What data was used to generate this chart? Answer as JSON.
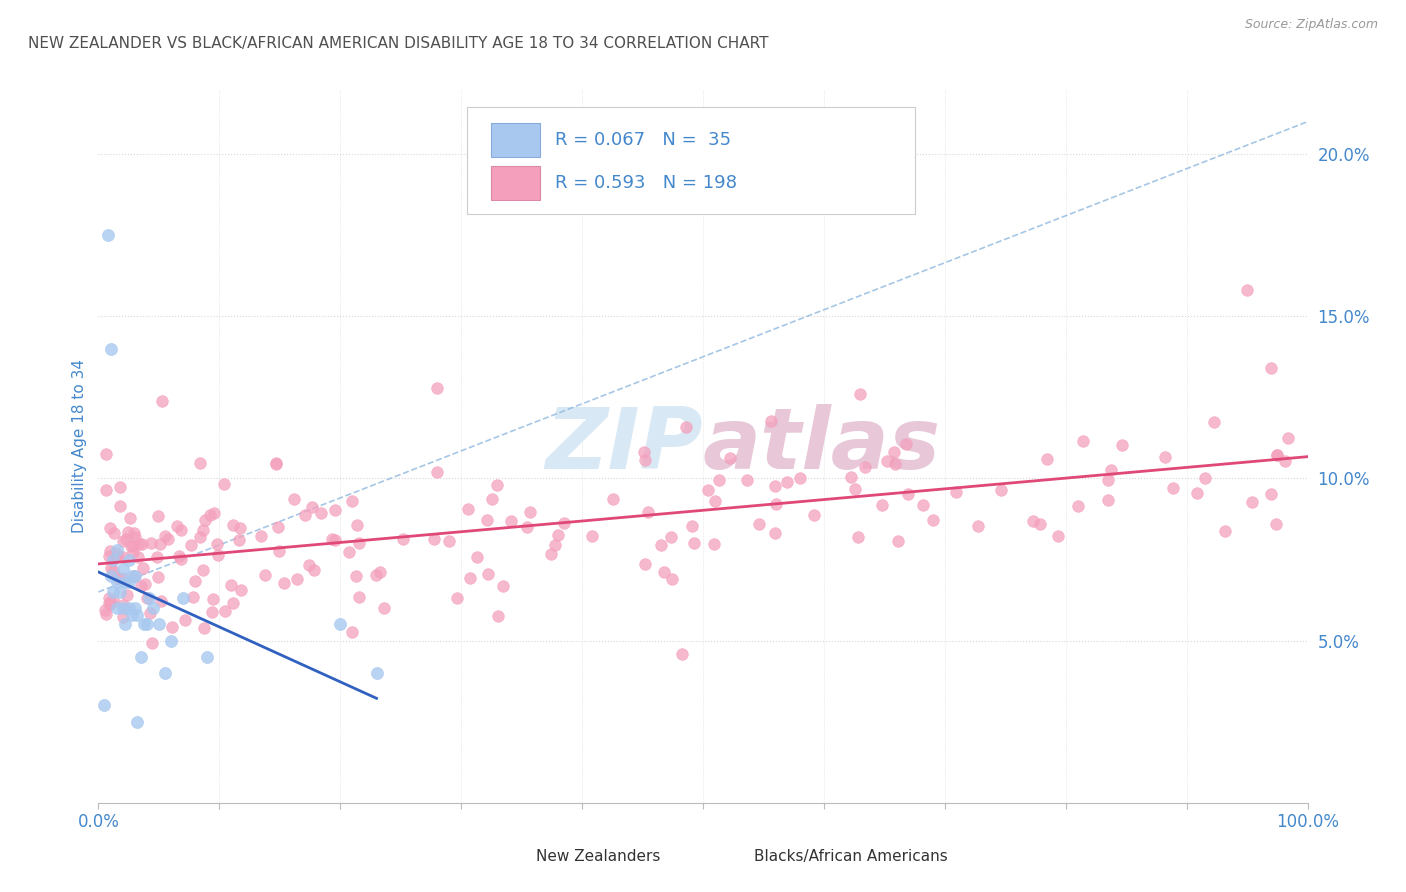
{
  "title": "NEW ZEALANDER VS BLACK/AFRICAN AMERICAN DISABILITY AGE 18 TO 34 CORRELATION CHART",
  "source": "Source: ZipAtlas.com",
  "ylabel": "Disability Age 18 to 34",
  "y_tick_labels": [
    "5.0%",
    "10.0%",
    "15.0%",
    "20.0%"
  ],
  "y_ticks": [
    0.05,
    0.1,
    0.15,
    0.2
  ],
  "legend1_r": "0.067",
  "legend1_n": "35",
  "legend2_r": "0.593",
  "legend2_n": "198",
  "legend1_label": "New Zealanders",
  "legend2_label": "Blacks/African Americans",
  "blue_color": "#A8C8F0",
  "pink_color": "#F4A0BC",
  "blue_line_color": "#3060C0",
  "pink_line_color": "#E04878",
  "dashed_line_color": "#90B8E0",
  "title_color": "#505050",
  "axis_label_color": "#4488CC",
  "watermark_color": "#D8E8F4",
  "grid_color": "#D8D8D8"
}
